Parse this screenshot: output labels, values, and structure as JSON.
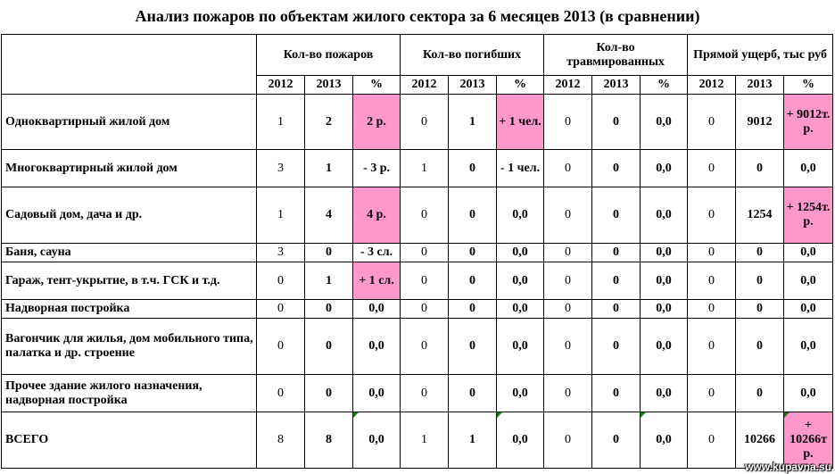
{
  "title": "Анализ пожаров по объектам жилого сектора за 6 месяцев 2013 (в сравнении)",
  "groups": {
    "fires": "Кол-во пожаров",
    "deaths": "Кол-во погибших",
    "injured": "Кол-во травмированных",
    "damage": "Прямой ущерб, тыс руб"
  },
  "subheaders": {
    "y2012": "2012",
    "y2013": "2013",
    "pct": "%"
  },
  "rows": [
    {
      "name": "Одноквартирный жилой дом",
      "fires": [
        "1",
        "2",
        "2 р."
      ],
      "deaths": [
        "0",
        "1",
        "+ 1 чел."
      ],
      "injured": [
        "0",
        "0",
        "0,0"
      ],
      "damage": [
        "0",
        "9012",
        "+ 9012т. р."
      ]
    },
    {
      "name": "Многоквартирный жилой дом",
      "fires": [
        "3",
        "1",
        "- 3 р."
      ],
      "deaths": [
        "1",
        "0",
        "- 1 чел."
      ],
      "injured": [
        "0",
        "0",
        "0,0"
      ],
      "damage": [
        "0",
        "0",
        "0,0"
      ]
    },
    {
      "name": "Садовый дом, дача и др.",
      "fires": [
        "1",
        "4",
        "4 р."
      ],
      "deaths": [
        "0",
        "0",
        "0,0"
      ],
      "injured": [
        "0",
        "0",
        "0,0"
      ],
      "damage": [
        "0",
        "1254",
        "+ 1254т. р."
      ]
    },
    {
      "name": "Баня, сауна",
      "fires": [
        "3",
        "0",
        "- 3 сл."
      ],
      "deaths": [
        "0",
        "0",
        "0,0"
      ],
      "injured": [
        "0",
        "0",
        "0,0"
      ],
      "damage": [
        "0",
        "0",
        "0,0"
      ]
    },
    {
      "name": "Гараж, тент-укрытие, в т.ч. ГСК и т.д.",
      "fires": [
        "0",
        "1",
        "+ 1 сл."
      ],
      "deaths": [
        "0",
        "0",
        "0,0"
      ],
      "injured": [
        "0",
        "0",
        "0,0"
      ],
      "damage": [
        "0",
        "0",
        "0,0"
      ]
    },
    {
      "name": "Надворная постройка",
      "fires": [
        "0",
        "0",
        "0,0"
      ],
      "deaths": [
        "0",
        "0",
        "0,0"
      ],
      "injured": [
        "0",
        "0",
        "0,0"
      ],
      "damage": [
        "0",
        "0",
        "0,0"
      ]
    },
    {
      "name": "Вагончик для жилья, дом мобильного типа, палатка и др. строение",
      "fires": [
        "0",
        "0",
        "0,0"
      ],
      "deaths": [
        "0",
        "0",
        "0,0"
      ],
      "injured": [
        "0",
        "0",
        "0,0"
      ],
      "damage": [
        "0",
        "0",
        "0,0"
      ]
    },
    {
      "name": "Прочее здание жилого назначения, надворная постройка",
      "fires": [
        "0",
        "0",
        "0,0"
      ],
      "deaths": [
        "0",
        "0",
        "0,0"
      ],
      "injured": [
        "0",
        "0",
        "0,0"
      ],
      "damage": [
        "0",
        "0",
        "0,0"
      ]
    },
    {
      "name": "ВСЕГО",
      "fires": [
        "8",
        "8",
        "0,0"
      ],
      "deaths": [
        "1",
        "1",
        "0,0"
      ],
      "injured": [
        "0",
        "0",
        "0,0"
      ],
      "damage": [
        "0",
        "10266",
        "+ 10266т р."
      ]
    }
  ],
  "highlight_color": "#ff99cc",
  "watermark": "www.kupavna.su"
}
